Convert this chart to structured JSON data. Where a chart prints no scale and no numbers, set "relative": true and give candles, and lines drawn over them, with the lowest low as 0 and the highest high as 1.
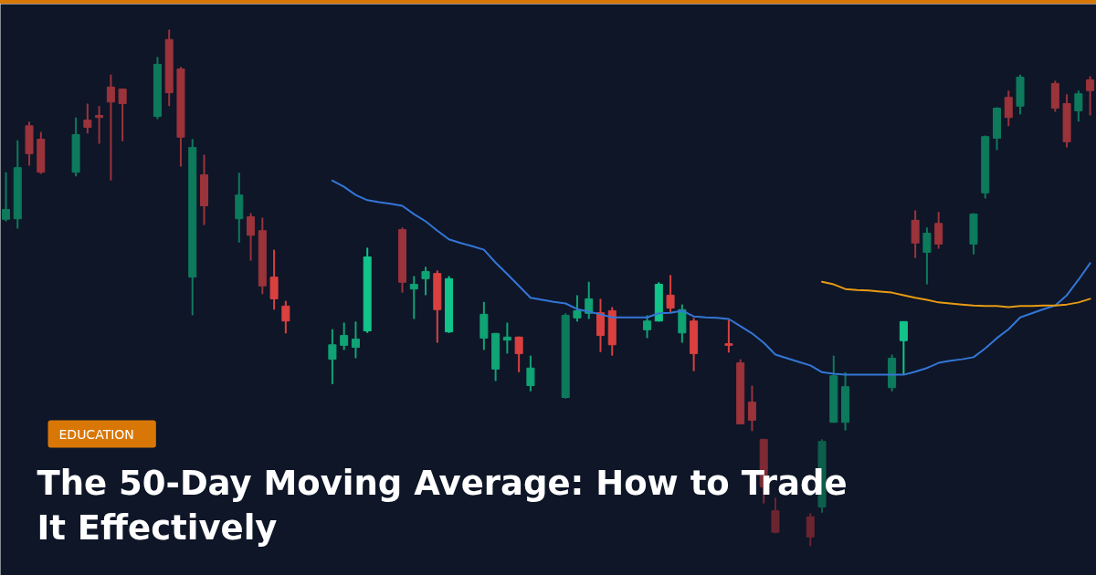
{
  "chart_data": {
    "type": "candlestick",
    "title": "The 50-Day Moving Average: How to Trade It Effectively",
    "annotations": [
      "EDUCATION"
    ],
    "relative": true,
    "categories": [
      null,
      null,
      null,
      null,
      null,
      null,
      null,
      null,
      null,
      null,
      null,
      null,
      null,
      null,
      null,
      null,
      null,
      null,
      null,
      null,
      null,
      null,
      null,
      null,
      null,
      null,
      null,
      null,
      null,
      null,
      null,
      null,
      null,
      null,
      null,
      null,
      null,
      null,
      null,
      null,
      null,
      null,
      null,
      null,
      null,
      null,
      null,
      null,
      null,
      null,
      null,
      null,
      null,
      null,
      null,
      null,
      null,
      null,
      null,
      null,
      null,
      null,
      null,
      null,
      null,
      null,
      null,
      null,
      null,
      null,
      null,
      null,
      null,
      null,
      null,
      null,
      null,
      null,
      null,
      null,
      null,
      null,
      null,
      null,
      null,
      null,
      null,
      null,
      null,
      null,
      null,
      null,
      null,
      null
    ],
    "ohlc": [
      [
        0.633,
        0.724,
        0.629,
        0.652
      ],
      [
        0.634,
        0.786,
        0.615,
        0.733
      ],
      [
        0.814,
        0.822,
        0.737,
        0.76
      ],
      [
        0.788,
        0.802,
        0.721,
        0.724
      ],
      null,
      null,
      [
        0.724,
        0.83,
        0.716,
        0.797
      ],
      [
        0.825,
        0.857,
        0.799,
        0.811
      ],
      [
        0.834,
        0.852,
        0.779,
        0.83
      ],
      [
        0.889,
        0.913,
        0.708,
        0.86
      ],
      [
        0.885,
        0.885,
        0.784,
        0.857
      ],
      null,
      null,
      [
        0.832,
        0.947,
        0.827,
        0.933
      ],
      [
        0.981,
        1.0,
        0.852,
        0.878
      ],
      [
        0.924,
        0.928,
        0.735,
        0.792
      ],
      [
        0.521,
        0.788,
        0.447,
        0.772
      ],
      [
        0.719,
        0.758,
        0.622,
        0.659
      ],
      null,
      null,
      [
        0.634,
        0.723,
        0.588,
        0.68
      ],
      [
        0.638,
        0.645,
        0.553,
        0.602
      ],
      [
        0.611,
        0.636,
        0.488,
        0.504
      ],
      [
        0.521,
        0.574,
        0.458,
        0.479
      ],
      [
        0.465,
        0.475,
        0.412,
        0.436
      ],
      null,
      null,
      null,
      [
        0.362,
        0.42,
        0.314,
        0.39
      ],
      [
        0.389,
        0.433,
        0.38,
        0.408
      ],
      [
        0.385,
        0.435,
        0.364,
        0.401
      ],
      [
        0.417,
        0.578,
        0.413,
        0.56
      ],
      null,
      null,
      [
        0.613,
        0.617,
        0.491,
        0.511
      ],
      [
        0.498,
        0.523,
        0.44,
        0.507
      ],
      [
        0.518,
        0.541,
        0.486,
        0.532
      ],
      [
        0.528,
        0.534,
        0.394,
        0.458
      ],
      [
        0.415,
        0.523,
        0.413,
        0.518
      ],
      null,
      null,
      [
        0.403,
        0.473,
        0.38,
        0.449
      ],
      [
        0.343,
        0.413,
        0.32,
        0.412
      ],
      [
        0.399,
        0.433,
        0.373,
        0.405
      ],
      [
        0.405,
        0.406,
        0.337,
        0.373
      ],
      [
        0.311,
        0.369,
        0.3,
        0.345
      ],
      null,
      null,
      [
        0.288,
        0.451,
        0.286,
        0.447
      ],
      [
        0.442,
        0.486,
        0.435,
        0.456
      ],
      [
        0.451,
        0.512,
        0.44,
        0.479
      ],
      [
        0.452,
        0.479,
        0.376,
        0.408
      ],
      [
        0.456,
        0.463,
        0.369,
        0.39
      ],
      null,
      null,
      [
        0.419,
        0.447,
        0.403,
        0.436
      ],
      [
        0.436,
        0.511,
        0.435,
        0.507
      ],
      [
        0.486,
        0.525,
        0.452,
        0.461
      ],
      [
        0.413,
        0.468,
        0.394,
        0.458
      ],
      [
        0.436,
        0.442,
        0.339,
        0.373
      ],
      null,
      null,
      [
        0.392,
        0.438,
        0.375,
        0.389
      ],
      [
        0.355,
        0.362,
        0.237,
        0.237
      ],
      [
        0.279,
        0.311,
        0.223,
        0.244
      ],
      [
        0.207,
        0.207,
        0.083,
        0.115
      ],
      [
        0.069,
        0.094,
        0.025,
        0.027
      ],
      null,
      null,
      [
        0.057,
        0.064,
        0.0,
        0.018
      ],
      [
        0.076,
        0.207,
        0.065,
        0.203
      ],
      [
        0.24,
        0.369,
        0.239,
        0.33
      ],
      [
        0.24,
        0.337,
        0.224,
        0.309
      ],
      null,
      null,
      null,
      [
        0.307,
        0.371,
        0.3,
        0.364
      ],
      [
        0.398,
        0.435,
        0.332,
        0.435
      ],
      [
        0.631,
        0.65,
        0.558,
        0.587
      ],
      [
        0.569,
        0.617,
        0.507,
        0.606
      ],
      [
        0.625,
        0.647,
        0.576,
        0.585
      ],
      null,
      null,
      [
        0.585,
        0.645,
        0.565,
        0.643
      ],
      [
        0.684,
        0.795,
        0.673,
        0.793
      ],
      [
        0.79,
        0.85,
        0.767,
        0.848
      ],
      [
        0.869,
        0.882,
        0.813,
        0.83
      ],
      [
        0.852,
        0.913,
        0.836,
        0.908
      ],
      null,
      null,
      [
        0.896,
        0.901,
        0.841,
        0.848
      ],
      [
        0.857,
        0.875,
        0.772,
        0.783
      ],
      [
        0.843,
        0.882,
        0.822,
        0.876
      ],
      [
        0.903,
        0.91,
        0.834,
        0.882
      ]
    ],
    "colors": [
      "#0e7a5c",
      "#0e7a5c",
      "#9b333b",
      "#9b333b",
      null,
      null,
      "#0e7a5c",
      "#9b333b",
      "#9b333b",
      "#9b333b",
      "#9b333b",
      null,
      null,
      "#0e7a5c",
      "#9b333b",
      "#9b333b",
      "#0e7a5c",
      "#9b333b",
      null,
      null,
      "#0e7a5c",
      "#9b333b",
      "#9b333b",
      "#d9403f",
      "#d9403f",
      null,
      null,
      null,
      "#10a374",
      "#10a374",
      "#10a374",
      "#12c48a",
      null,
      null,
      "#9b333b",
      "#10a374",
      "#10a374",
      "#d9403f",
      "#12c48a",
      null,
      null,
      "#10a374",
      "#10a374",
      "#10a374",
      "#d9403f",
      "#10a374",
      null,
      null,
      "#0e7a5c",
      "#10a374",
      "#10a374",
      "#d9403f",
      "#d9403f",
      null,
      null,
      "#10a374",
      "#12c48a",
      "#d9403f",
      "#10a374",
      "#d9403f",
      null,
      null,
      "#d9403f",
      "#9b333b",
      "#9b333b",
      "#7e2a34",
      "#6b2530",
      null,
      null,
      "#6b2530",
      "#0d5e4a",
      "#0e7a5c",
      "#0e7a5c",
      null,
      null,
      null,
      "#0e7a5c",
      "#12c48a",
      "#9b333b",
      "#0e7a5c",
      "#9b333b",
      null,
      null,
      "#0e7a5c",
      "#0e7a5c",
      "#0e7a5c",
      "#9b333b",
      "#0e7a5c",
      null,
      null,
      "#9b333b",
      "#9b333b",
      "#0e7a5c",
      "#9b333b"
    ],
    "series": [
      {
        "type": "line",
        "color": "#3476d6",
        "values": [
          null,
          null,
          null,
          null,
          null,
          null,
          null,
          null,
          null,
          null,
          null,
          null,
          null,
          null,
          null,
          null,
          null,
          null,
          null,
          null,
          null,
          null,
          null,
          null,
          null,
          null,
          null,
          null,
          0.708,
          0.696,
          0.68,
          0.67,
          0.666,
          0.663,
          0.659,
          0.643,
          0.629,
          0.611,
          0.594,
          0.587,
          0.581,
          0.574,
          0.549,
          0.527,
          0.504,
          0.481,
          0.477,
          0.473,
          0.47,
          0.459,
          0.454,
          0.449,
          0.443,
          0.443,
          0.443,
          0.443,
          0.451,
          0.452,
          0.456,
          0.445,
          0.443,
          0.442,
          0.44,
          0.426,
          0.412,
          0.394,
          0.371,
          0.364,
          0.357,
          0.35,
          0.337,
          0.334,
          0.332,
          0.332,
          0.332,
          0.332,
          0.332,
          0.332,
          0.338,
          0.345,
          0.355,
          0.359,
          0.362,
          0.366,
          0.383,
          0.403,
          0.42,
          0.443,
          0.451,
          0.459,
          0.466,
          0.486,
          0.516,
          0.548
        ]
      },
      {
        "type": "line",
        "color": "#e89b12",
        "values": [
          null,
          null,
          null,
          null,
          null,
          null,
          null,
          null,
          null,
          null,
          null,
          null,
          null,
          null,
          null,
          null,
          null,
          null,
          null,
          null,
          null,
          null,
          null,
          null,
          null,
          null,
          null,
          null,
          null,
          null,
          null,
          null,
          null,
          null,
          null,
          null,
          null,
          null,
          null,
          null,
          null,
          null,
          null,
          null,
          null,
          null,
          null,
          null,
          null,
          null,
          null,
          null,
          null,
          null,
          null,
          null,
          null,
          null,
          null,
          null,
          null,
          null,
          null,
          null,
          null,
          null,
          null,
          null,
          null,
          null,
          0.512,
          0.507,
          0.498,
          0.496,
          0.495,
          0.493,
          0.491,
          0.486,
          0.481,
          0.477,
          0.472,
          0.47,
          0.468,
          0.466,
          0.465,
          0.465,
          0.463,
          0.465,
          0.465,
          0.466,
          0.466,
          0.468,
          0.472,
          0.479
        ]
      }
    ]
  }
}
